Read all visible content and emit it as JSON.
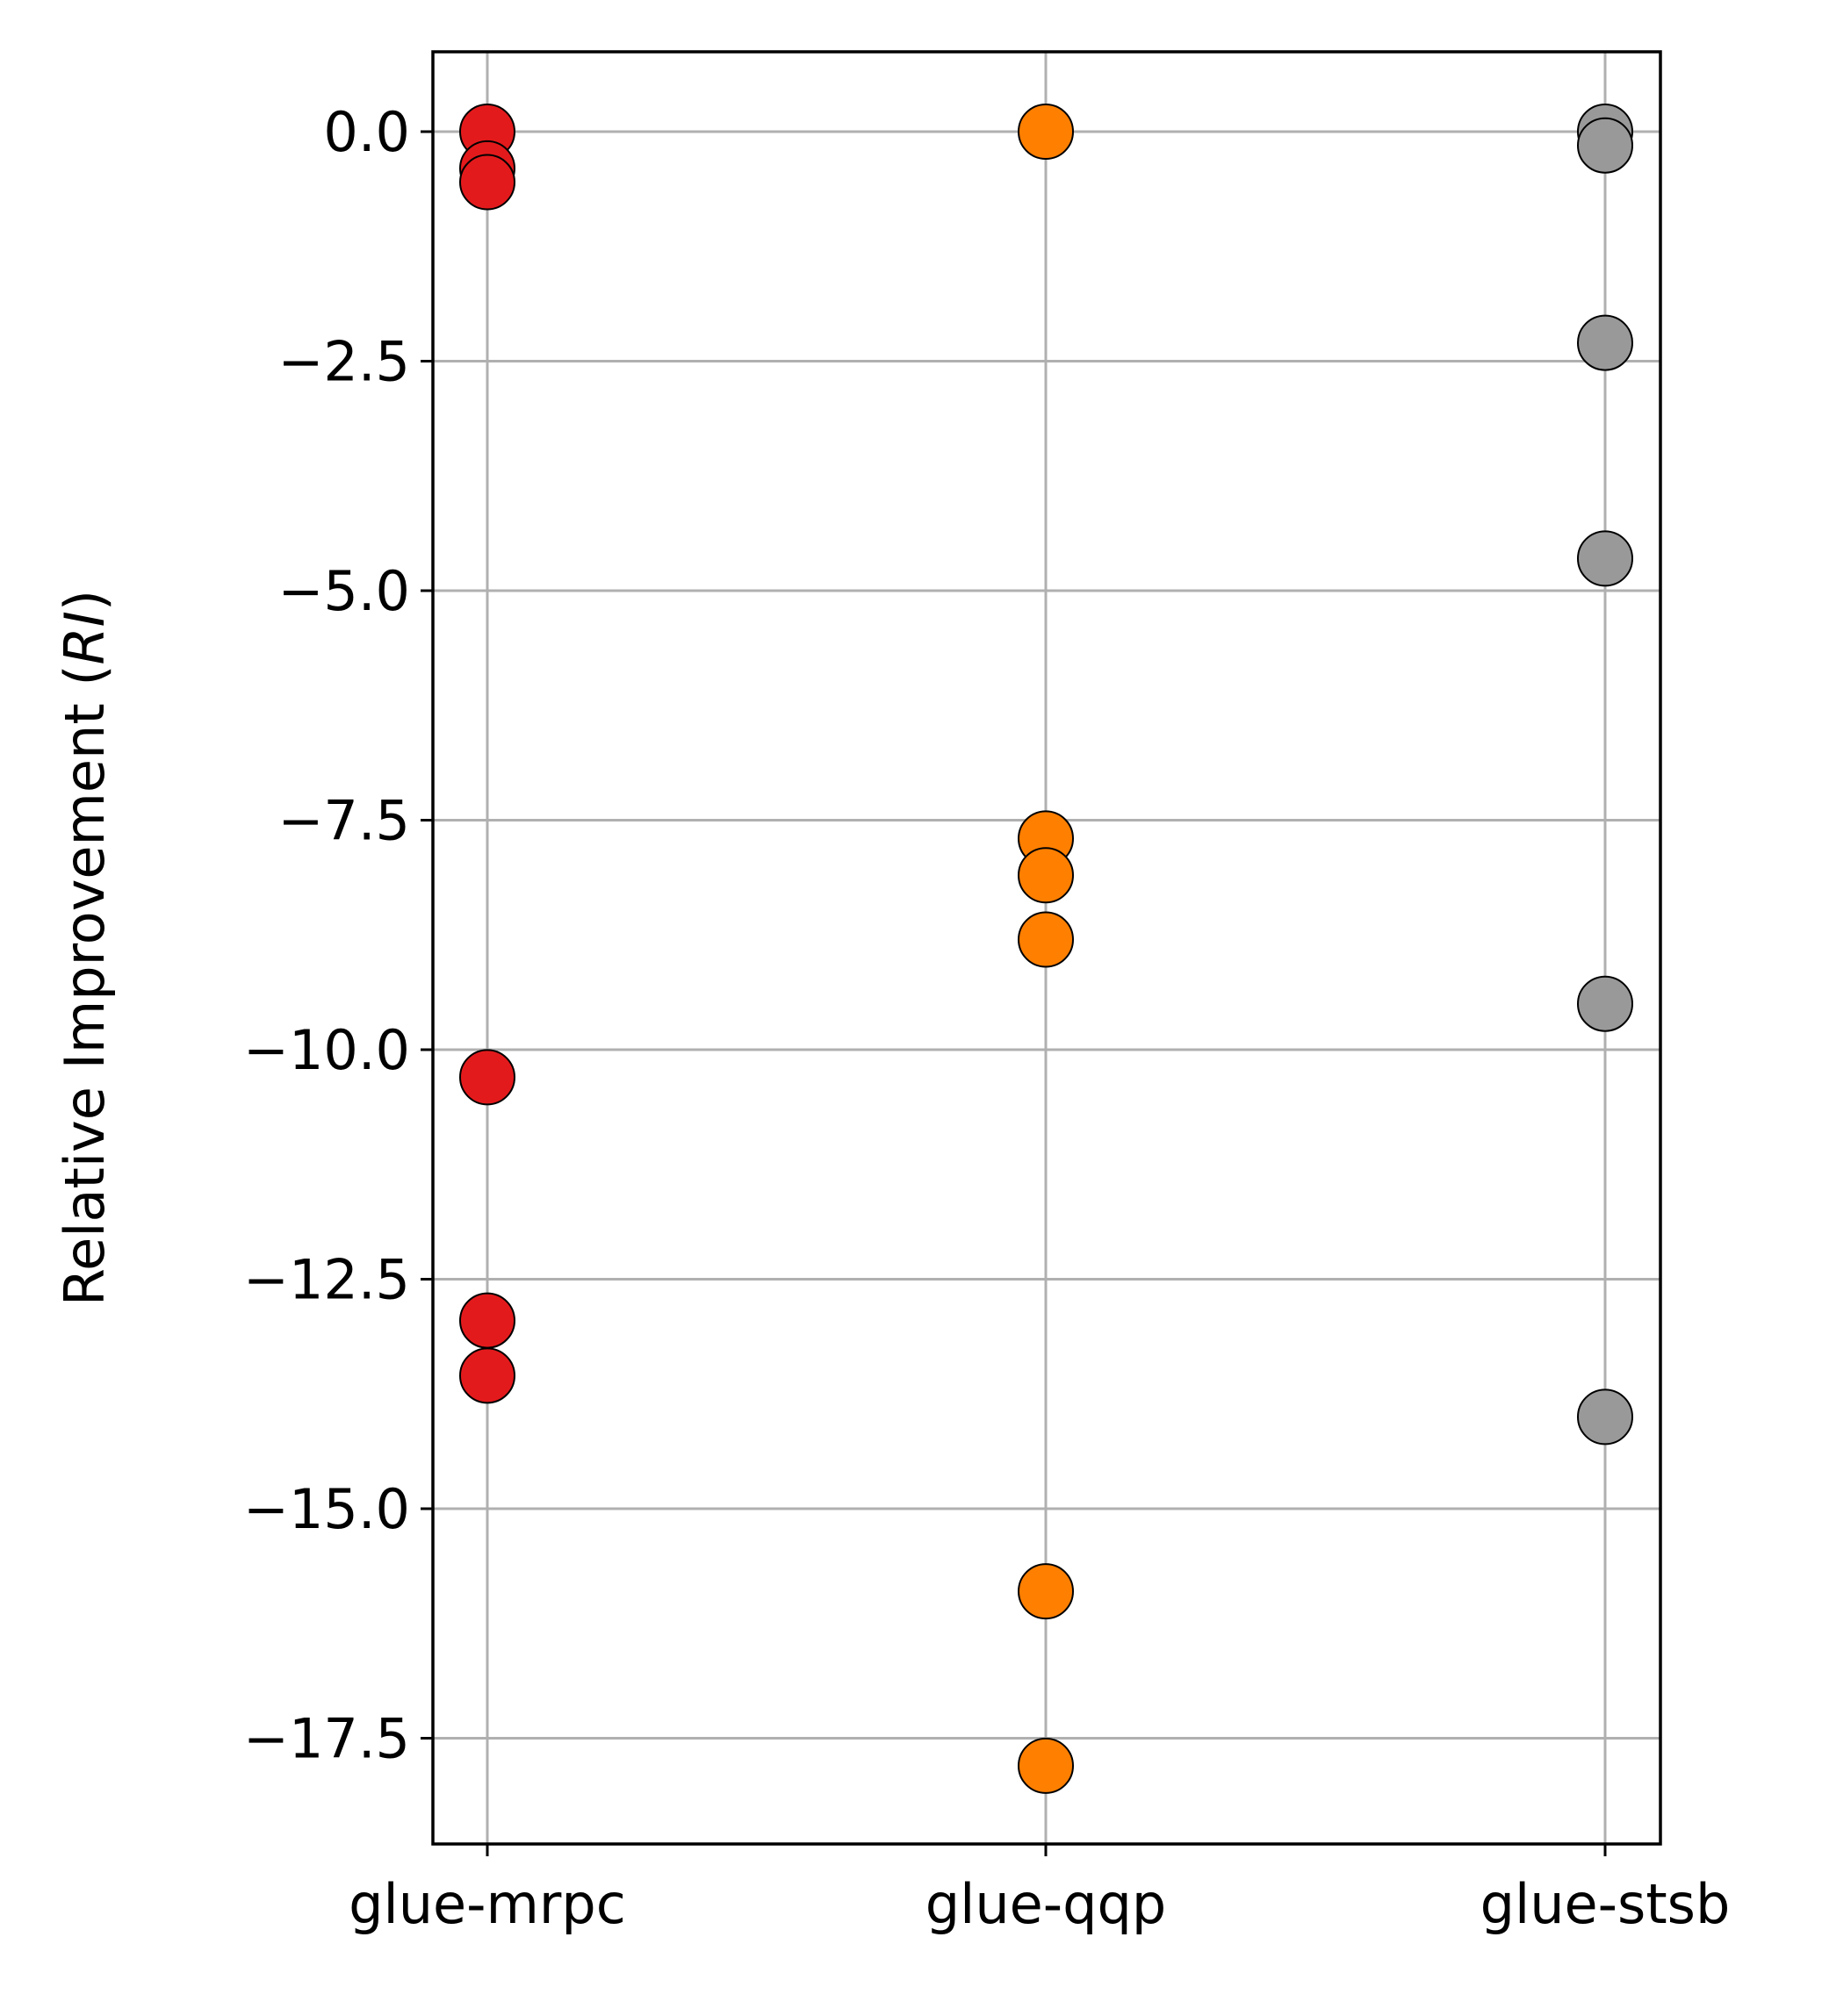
{
  "chart_data": {
    "type": "scatter",
    "ylabel": "Relative Improvement (",
    "ylabel_italic": "RI",
    "ylabel_suffix": ")",
    "xlabel": "",
    "title": "",
    "categories": [
      "glue-mrpc",
      "glue-qqp",
      "glue-stsb"
    ],
    "ylim": [
      -18.7,
      0.9
    ],
    "yticks": [
      0.0,
      -2.5,
      -5.0,
      -7.5,
      -10.0,
      -12.5,
      -15.0,
      -17.5
    ],
    "ytick_labels": [
      "0.0",
      "−2.5",
      "−5.0",
      "−7.5",
      "−10.0",
      "−12.5",
      "−15.0",
      "−17.5"
    ],
    "grid": true,
    "legend": "none",
    "series": [
      {
        "category": "glue-mrpc",
        "color": "#e31a1c",
        "values": [
          0.0,
          -0.4,
          -0.55,
          -10.3,
          -12.95,
          -13.55
        ]
      },
      {
        "category": "glue-qqp",
        "color": "#ff7f00",
        "values": [
          0.0,
          -7.7,
          -8.1,
          -8.8,
          -15.9,
          -17.8
        ]
      },
      {
        "category": "glue-stsb",
        "color": "#999999",
        "values": [
          0.0,
          -0.15,
          -2.3,
          -4.65,
          -9.5,
          -14.0
        ]
      }
    ]
  }
}
